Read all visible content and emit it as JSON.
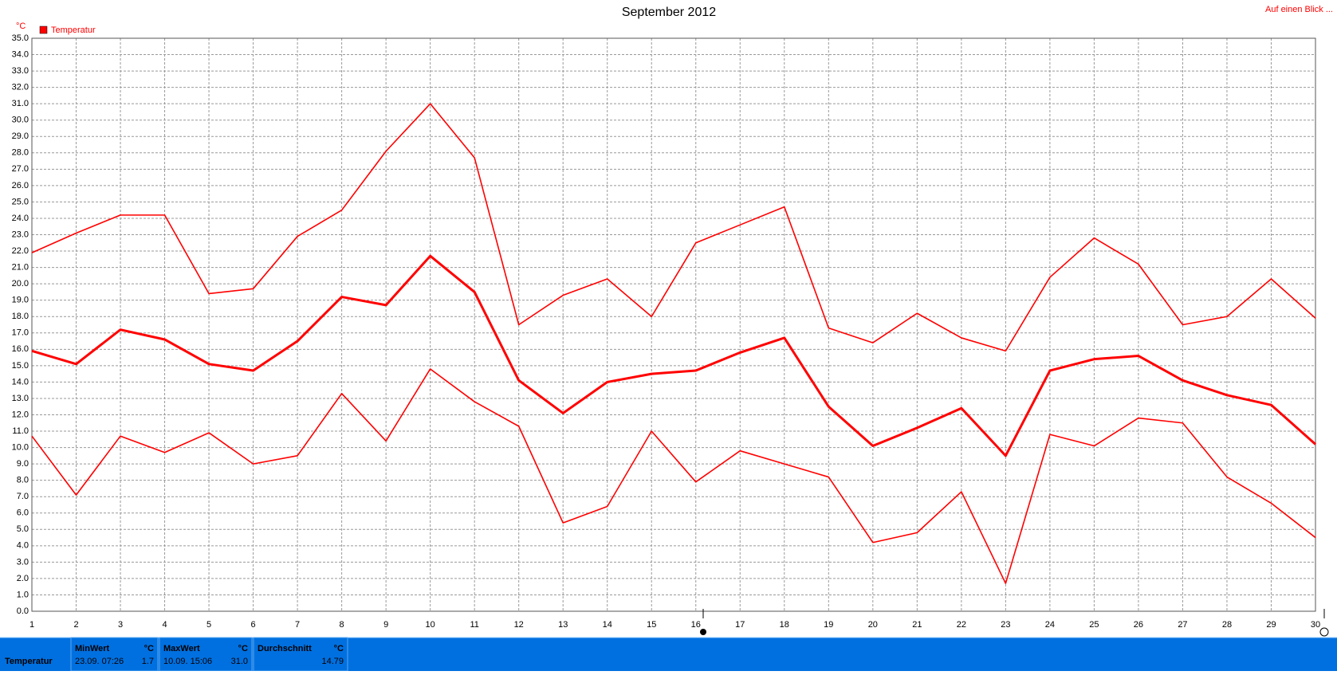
{
  "chart_data": {
    "type": "line",
    "title": "September 2012",
    "y_unit": "°C",
    "legend": "Temperatur",
    "link": "Auf einen Blick ...",
    "x": [
      1,
      2,
      3,
      4,
      5,
      6,
      7,
      8,
      9,
      10,
      11,
      12,
      13,
      14,
      15,
      16,
      17,
      18,
      19,
      20,
      21,
      22,
      23,
      24,
      25,
      26,
      27,
      28,
      29,
      30
    ],
    "series": [
      {
        "color": "#ff0000",
        "values": [
          21.9,
          23.1,
          24.2,
          24.2,
          19.4,
          19.7,
          22.9,
          24.5,
          28.1,
          31.0,
          27.7,
          17.5,
          19.3,
          20.3,
          18.0,
          22.5,
          23.6,
          24.7,
          17.3,
          16.4,
          18.2,
          16.7,
          15.9,
          20.4,
          22.8,
          21.2,
          17.5,
          18.0,
          20.3,
          17.9
        ]
      },
      {
        "color": "#ff0000",
        "values": [
          15.9,
          15.1,
          17.2,
          16.6,
          15.1,
          14.7,
          16.5,
          19.2,
          18.7,
          21.7,
          19.5,
          14.1,
          12.1,
          14.0,
          14.5,
          14.7,
          15.8,
          16.7,
          12.5,
          10.1,
          11.2,
          12.4,
          9.5,
          14.7,
          15.4,
          15.6,
          14.1,
          13.2,
          12.6,
          10.2
        ]
      },
      {
        "color": "#ff0000",
        "values": [
          10.7,
          7.1,
          10.7,
          9.7,
          10.9,
          9.0,
          9.5,
          13.3,
          10.4,
          14.8,
          12.8,
          11.3,
          5.4,
          6.4,
          11.0,
          7.9,
          9.8,
          9.0,
          8.2,
          4.2,
          4.8,
          7.3,
          1.7,
          10.8,
          10.1,
          11.8,
          11.5,
          8.2,
          6.6,
          4.5
        ]
      }
    ],
    "xlim": [
      1,
      30
    ],
    "xticks": [
      1,
      2,
      3,
      4,
      5,
      6,
      7,
      8,
      9,
      10,
      11,
      12,
      13,
      14,
      15,
      16,
      17,
      18,
      19,
      20,
      21,
      22,
      23,
      24,
      25,
      26,
      27,
      28,
      29,
      30
    ],
    "ylim": [
      0,
      35
    ],
    "yticks": [
      {
        "value": 0,
        "label": "0.0"
      },
      {
        "value": 1,
        "label": "1.0"
      },
      {
        "value": 2,
        "label": "2.0"
      },
      {
        "value": 3,
        "label": "3.0"
      },
      {
        "value": 4,
        "label": "4.0"
      },
      {
        "value": 5,
        "label": "5.0"
      },
      {
        "value": 6,
        "label": "6.0"
      },
      {
        "value": 7,
        "label": "7.0"
      },
      {
        "value": 8,
        "label": "8.0"
      },
      {
        "value": 9,
        "label": "9.0"
      },
      {
        "value": 10,
        "label": "10.0"
      },
      {
        "value": 11,
        "label": "11.0"
      },
      {
        "value": 12,
        "label": "12.0"
      },
      {
        "value": 13,
        "label": "13.0"
      },
      {
        "value": 14,
        "label": "14.0"
      },
      {
        "value": 15,
        "label": "15.0"
      },
      {
        "value": 16,
        "label": "16.0"
      },
      {
        "value": 17,
        "label": "17.0"
      },
      {
        "value": 18,
        "label": "18.0"
      },
      {
        "value": 19,
        "label": "19.0"
      },
      {
        "value": 20,
        "label": "20.0"
      },
      {
        "value": 21,
        "label": "21.0"
      },
      {
        "value": 22,
        "label": "22.0"
      },
      {
        "value": 23,
        "label": "23.0"
      },
      {
        "value": 24,
        "label": "24.0"
      },
      {
        "value": 25,
        "label": "25.0"
      },
      {
        "value": 26,
        "label": "26.0"
      },
      {
        "value": 27,
        "label": "27.0"
      },
      {
        "value": 28,
        "label": "28.0"
      },
      {
        "value": 29,
        "label": "29.0"
      },
      {
        "value": 30,
        "label": "30.0"
      },
      {
        "value": 31,
        "label": "31.0"
      },
      {
        "value": 32,
        "label": "32.0"
      },
      {
        "value": 33,
        "label": "33.0"
      },
      {
        "value": 34,
        "label": "34.0"
      },
      {
        "value": 35,
        "label": "35.0"
      }
    ],
    "grid": true
  },
  "summary": {
    "label": "Temperatur",
    "cells": [
      {
        "header": "MinWert",
        "unit": "°C",
        "time": "23.09. 07:26",
        "value": "1.7"
      },
      {
        "header": "MaxWert",
        "unit": "°C",
        "time": "10.09. 15:06",
        "value": "31.0"
      },
      {
        "header": "Durchschnitt",
        "unit": "°C",
        "time": "",
        "value": "14.79"
      }
    ]
  }
}
